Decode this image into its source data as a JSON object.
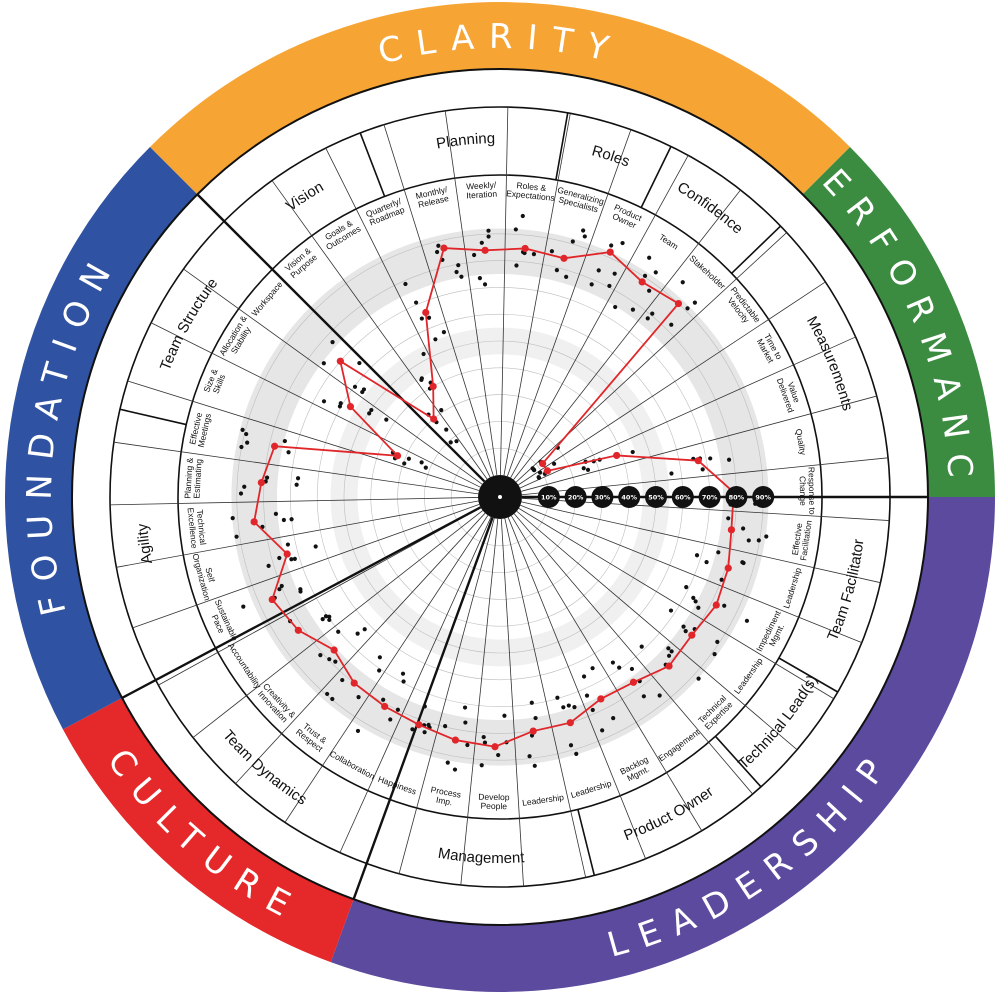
{
  "quadrants": [
    {
      "name": "CLARITY",
      "color": "#f6a535",
      "start": -45,
      "end": 45
    },
    {
      "name": "PERFORMANCE",
      "color": "#3b8c41",
      "start": 45,
      "end": 90
    },
    {
      "name": "LEADERSHIP",
      "color": "#5c4a9f",
      "start": 90,
      "end": 200
    },
    {
      "name": "CULTURE",
      "color": "#e5282a",
      "start": 200,
      "end": 242
    },
    {
      "name": "FOUNDATION",
      "color": "#2f53a2",
      "start": 242,
      "end": 315
    }
  ],
  "categories": [
    {
      "label": "Vision",
      "start": -45,
      "end": -21
    },
    {
      "label": "Planning",
      "start": -21,
      "end": 10
    },
    {
      "label": "Roles",
      "start": 10,
      "end": 26
    },
    {
      "label": "Confidence",
      "start": 26,
      "end": 46
    },
    {
      "label": "Measurements",
      "start": 46,
      "end": 90
    },
    {
      "label": "Team Facilitator",
      "start": 90,
      "end": 120
    },
    {
      "label": "Technical Lead(s)",
      "start": 120,
      "end": 138
    },
    {
      "label": "Product Owner",
      "start": 138,
      "end": 166
    },
    {
      "label": "Management",
      "start": 166,
      "end": 200
    },
    {
      "label": "Team Dynamics",
      "start": 200,
      "end": 242
    },
    {
      "label": "Agility",
      "start": 242,
      "end": 283
    },
    {
      "label": "Team Structure",
      "start": 283,
      "end": 315
    }
  ],
  "subcategories": [
    {
      "label": "Vision & Purpose"
    },
    {
      "label": "Goals & Outcomes"
    },
    {
      "label": "Quarterly/ Roadmap"
    },
    {
      "label": "Monthly/ Release"
    },
    {
      "label": "Weekly/ Iteration"
    },
    {
      "label": "Roles & Expectations"
    },
    {
      "label": "Generalizing Specialists"
    },
    {
      "label": "Product Owner"
    },
    {
      "label": "Team"
    },
    {
      "label": "Stakeholder"
    },
    {
      "label": "Predictable Velocity"
    },
    {
      "label": "Time to Market"
    },
    {
      "label": "Value Delivered"
    },
    {
      "label": "Quality"
    },
    {
      "label": "Response to Change"
    },
    {
      "label": "Effective Facilitation"
    },
    {
      "label": "Leadership"
    },
    {
      "label": "Impediment Mgmt."
    },
    {
      "label": "Leadership"
    },
    {
      "label": "Technical Expertise"
    },
    {
      "label": "Engagement"
    },
    {
      "label": "Backlog Mgmt."
    },
    {
      "label": "Leadership"
    },
    {
      "label": "Leadership"
    },
    {
      "label": "Develop People"
    },
    {
      "label": "Process Imp."
    },
    {
      "label": "Happiness"
    },
    {
      "label": "Collaboration"
    },
    {
      "label": "Trust & Respect"
    },
    {
      "label": "Creativity & Innovation"
    },
    {
      "label": "Accountability"
    },
    {
      "label": "Sustainable Pace"
    },
    {
      "label": "Self Organization"
    },
    {
      "label": "Technical Excellence"
    },
    {
      "label": "Planning & Estimating"
    },
    {
      "label": "Effective Meetings"
    },
    {
      "label": "Size & Skills"
    },
    {
      "label": "Allocation & Stability"
    },
    {
      "label": "Workspace"
    }
  ],
  "scale_labels": [
    "10%",
    "20%",
    "30%",
    "40%",
    "50%",
    "60%",
    "70%",
    "80%",
    "90%"
  ],
  "colors": {
    "line": "#e0262a",
    "dot": "#111111",
    "band": "#e6e6e6",
    "grid": "#bdbdbd"
  },
  "chart_data": {
    "type": "radar",
    "range": [
      0,
      100
    ],
    "red_series_percent": [
      30,
      40,
      66,
      87,
      84,
      85,
      84,
      92,
      88,
      90,
      12,
      12,
      38,
      67,
      79,
      79,
      81,
      82,
      80,
      81,
      77,
      76,
      80,
      80,
      85,
      84,
      82,
      81,
      80,
      76,
      82,
      85,
      74,
      84,
      81,
      78,
      33,
      57,
      70
    ],
    "band_percent": [
      75,
      92
    ]
  }
}
